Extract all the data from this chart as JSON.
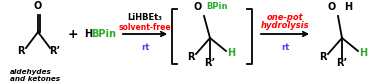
{
  "bg_color": "#ffffff",
  "fig_width": 3.78,
  "fig_height": 0.84,
  "dpi": 100,
  "aldehyde_label": "aldehydes\nand ketones",
  "plus_sign": "+",
  "hbpin_H": "H",
  "hbpin_rest": "BPin",
  "catalyst_text": "LiHBEt₃",
  "condition1_text": "solvent-free",
  "condition2_text": "rt",
  "condition3_text": "rt",
  "one_pot_line1": "one-pot",
  "one_pot_line2": "hydrolysis",
  "black": "#000000",
  "red": "#ff0000",
  "green": "#2aab2a",
  "blue": "#4444ff",
  "teal": "#2aab2a",
  "carbonyl_O_text": "O",
  "carbonyl_R_text": "R",
  "carbonyl_Rprime_text": "R’",
  "intermediate_O": "O",
  "intermediate_BPin": "BPin",
  "intermediate_R": "R",
  "intermediate_Rprime": "R’",
  "intermediate_H": "H",
  "product_O": "O",
  "product_H_oh": "H",
  "product_R": "R",
  "product_Rprime": "R’",
  "product_H": "H"
}
